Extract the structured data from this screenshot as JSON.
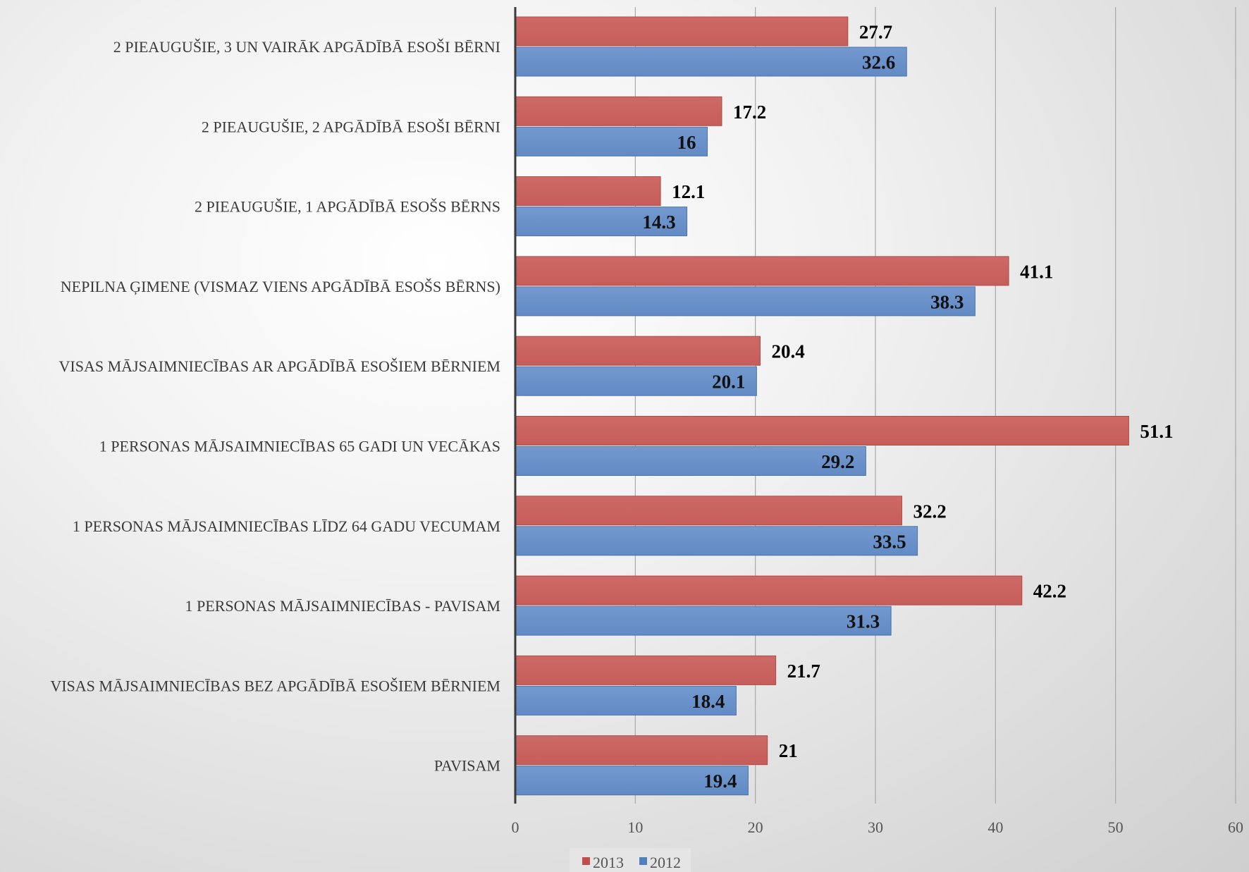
{
  "chart_data": {
    "type": "bar",
    "orientation": "horizontal",
    "categories": [
      "2 PIEAUGUŠIE, 3 UN VAIRĀK APGĀDĪBĀ ESOŠI BĒRNI",
      "2 PIEAUGUŠIE, 2 APGĀDĪBĀ ESOŠI BĒRNI",
      "2 PIEAUGUŠIE, 1 APGĀDĪBĀ ESOŠS BĒRNS",
      "NEPILNA ĢIMENE (VISMAZ VIENS APGĀDĪBĀ ESOŠS BĒRNS)",
      "VISAS MĀJSAIMNIECĪBAS AR APGĀDĪBĀ ESOŠIEM BĒRNIEM",
      "1 PERSONAS MĀJSAIMNIECĪBAS 65 GADI UN VECĀKAS",
      "1 PERSONAS MĀJSAIMNIECĪBAS LĪDZ 64 GADU VECUMAM",
      "1 PERSONAS MĀJSAIMNIECĪBAS - PAVISAM",
      "VISAS MĀJSAIMNIECĪBAS BEZ APGĀDĪBĀ ESOŠIEM BĒRNIEM",
      "PAVISAM"
    ],
    "series": [
      {
        "name": "2013",
        "color": "#c0504d",
        "values": [
          27.7,
          17.2,
          12.1,
          41.1,
          20.4,
          51.1,
          32.2,
          42.2,
          21.7,
          21
        ],
        "labels": [
          "27.7",
          "17.2",
          "12.1",
          "41.1",
          "20.4",
          "51.1",
          "32.2",
          "42.2",
          "21.7",
          "21"
        ]
      },
      {
        "name": "2012",
        "color": "#4f81bd",
        "values": [
          32.6,
          16,
          14.3,
          38.3,
          20.1,
          29.2,
          33.5,
          31.3,
          18.4,
          19.4
        ],
        "labels": [
          "32.6",
          "16",
          "14.3",
          "38.3",
          "20.1",
          "29.2",
          "33.5",
          "31.3",
          "18.4",
          "19.4"
        ]
      }
    ],
    "xlim": [
      0,
      60
    ],
    "xticks": [
      "0",
      "10",
      "20",
      "30",
      "40",
      "50",
      "60"
    ],
    "grid": true,
    "legend_position": "bottom",
    "title": "",
    "xlabel": "",
    "ylabel": ""
  }
}
